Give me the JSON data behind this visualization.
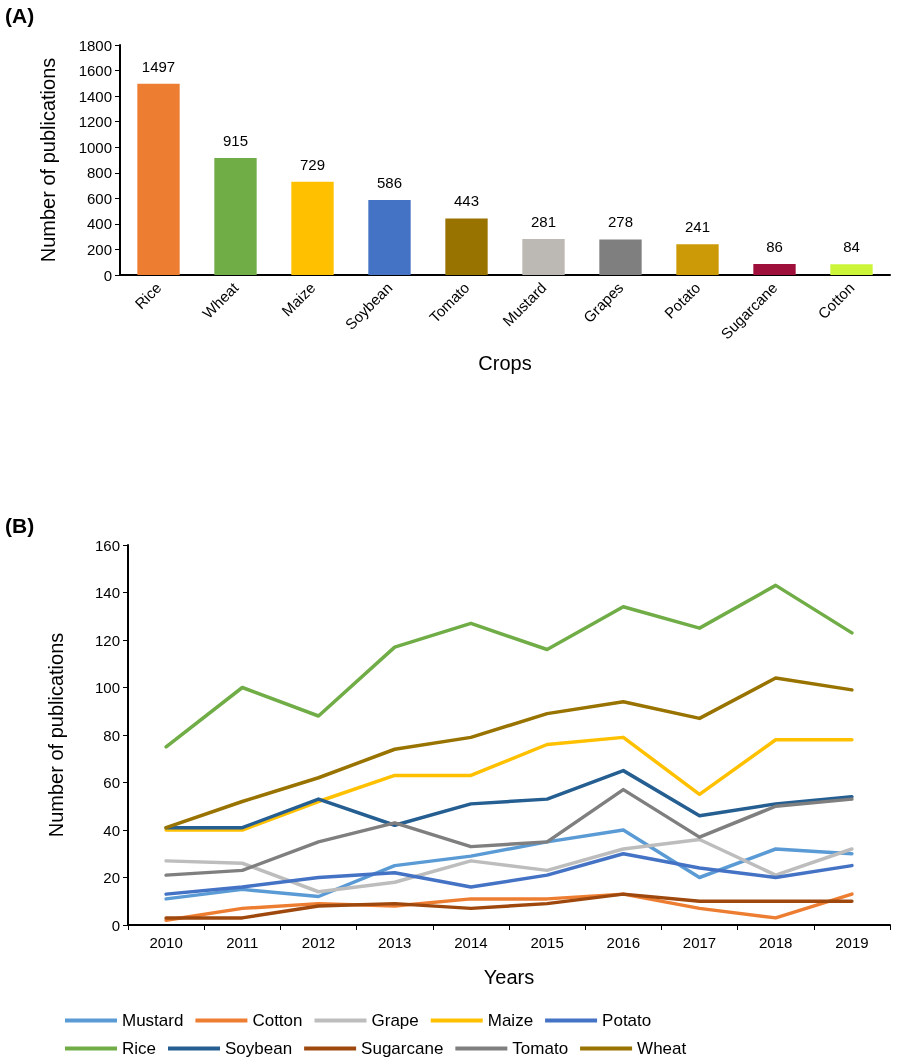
{
  "chart_data": [
    {
      "type": "bar",
      "title": "(A)",
      "xlabel": "Crops",
      "ylabel": "Number of publications",
      "categories": [
        "Rice",
        "Wheat",
        "Maize",
        "Soybean",
        "Tomato",
        "Mustard",
        "Grapes",
        "Potato",
        "Sugarcane",
        "Cotton"
      ],
      "values": [
        1497,
        915,
        729,
        586,
        443,
        281,
        278,
        241,
        86,
        84
      ],
      "colors": [
        "#ed7d31",
        "#70ad47",
        "#ffc000",
        "#4472c4",
        "#997300",
        "#bcb8b3",
        "#7f7f7f",
        "#cc9a06",
        "#9e0f3b",
        "#ccf53a"
      ],
      "ylim": [
        0,
        1800
      ],
      "yticks": [
        0,
        200,
        400,
        600,
        800,
        1000,
        1200,
        1400,
        1600,
        1800
      ],
      "grid": false,
      "data_labels": true
    },
    {
      "type": "line",
      "title": "(B)",
      "xlabel": "Years",
      "ylabel": "Number of publications",
      "categories": [
        "2010",
        "2011",
        "2012",
        "2013",
        "2014",
        "2015",
        "2016",
        "2017",
        "2018",
        "2019"
      ],
      "series": [
        {
          "name": "Mustard",
          "color": "#5b9bd5",
          "values": [
            11,
            15,
            12,
            25,
            29,
            35,
            40,
            20,
            32,
            30
          ]
        },
        {
          "name": "Cotton",
          "color": "#ed7d31",
          "values": [
            2,
            7,
            9,
            8,
            11,
            11,
            13,
            7,
            3,
            13
          ]
        },
        {
          "name": "Grape",
          "color": "#bdbdbd",
          "values": [
            27,
            26,
            14,
            18,
            27,
            23,
            32,
            36,
            21,
            32
          ]
        },
        {
          "name": "Maize",
          "color": "#ffc000",
          "values": [
            40,
            40,
            52,
            63,
            63,
            76,
            79,
            55,
            78,
            78
          ]
        },
        {
          "name": "Potato",
          "color": "#4472c4",
          "values": [
            13,
            16,
            20,
            22,
            16,
            21,
            30,
            24,
            20,
            25
          ]
        },
        {
          "name": "Rice",
          "color": "#70ad47",
          "values": [
            75,
            100,
            88,
            117,
            127,
            116,
            134,
            125,
            143,
            123
          ]
        },
        {
          "name": "Soybean",
          "color": "#255e91",
          "values": [
            41,
            41,
            53,
            42,
            51,
            53,
            65,
            46,
            51,
            54
          ]
        },
        {
          "name": "Sugarcane",
          "color": "#9e480e",
          "values": [
            3,
            3,
            8,
            9,
            7,
            9,
            13,
            10,
            10,
            10
          ]
        },
        {
          "name": "Tomato",
          "color": "#7f7f7f",
          "values": [
            21,
            23,
            35,
            43,
            33,
            35,
            57,
            37,
            50,
            53
          ]
        },
        {
          "name": "Wheat",
          "color": "#997300",
          "values": [
            41,
            52,
            62,
            74,
            79,
            89,
            94,
            87,
            104,
            99
          ]
        }
      ],
      "ylim": [
        0,
        160
      ],
      "yticks": [
        0,
        20,
        40,
        60,
        80,
        100,
        120,
        140,
        160
      ],
      "grid": false,
      "legend": "bottom",
      "marker": "none",
      "line_style": "solid"
    }
  ]
}
